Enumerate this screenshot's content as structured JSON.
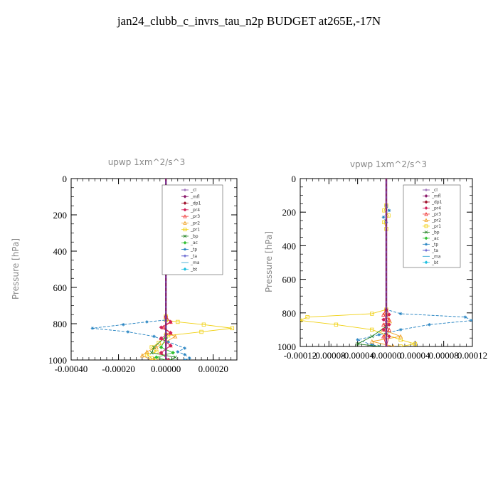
{
  "title": "jan24_clubb_c_invrs_tau_n2p  BUDGET at265E,-17N",
  "legend_entries": [
    {
      "name": "_cl",
      "color": "#7a3ea0",
      "marker": "plus"
    },
    {
      "name": "_mfl",
      "color": "#8b1a6a",
      "marker": "diamond"
    },
    {
      "name": "_dp1",
      "color": "#a0102a",
      "marker": "diamond"
    },
    {
      "name": "_pr4",
      "color": "#d0205a",
      "marker": "diamond"
    },
    {
      "name": "_pr3",
      "color": "#f03030",
      "marker": "triangle"
    },
    {
      "name": "_pr2",
      "color": "#f0a020",
      "marker": "triangle"
    },
    {
      "name": "_pr1",
      "color": "#f0d010",
      "marker": "square"
    },
    {
      "name": "_bp",
      "color": "#208020",
      "marker": "x"
    },
    {
      "name": "_ac",
      "color": "#30c030",
      "marker": "diamond"
    },
    {
      "name": "_tp",
      "color": "#2080c0",
      "marker": "star"
    },
    {
      "name": "_ta",
      "color": "#3030c0",
      "marker": "plus"
    },
    {
      "name": "_ma",
      "color": "#20a0d0",
      "marker": "none"
    },
    {
      "name": "_bt",
      "color": "#20c0e0",
      "marker": "diamond"
    }
  ],
  "chart_data": [
    {
      "type": "line",
      "title": "upwp   1xm^2/s^3",
      "xlabel": "",
      "ylabel": "Pressure [hPa]",
      "xlim": [
        -0.0004,
        0.0003
      ],
      "ylim": [
        1000,
        0
      ],
      "x_tick_labels": [
        "-0.00040",
        "-0.00020",
        "0.00000",
        "0.00020"
      ],
      "x_ticks": [
        -0.0004,
        -0.0002,
        0.0,
        0.0002
      ],
      "y_ticks": [
        0,
        200,
        400,
        600,
        800,
        1000
      ],
      "y_tick_labels": [
        "0",
        "200",
        "400",
        "600",
        "800",
        "1000"
      ],
      "legend": "top-right",
      "series": [
        {
          "name": "_pr1",
          "values": [
            [
              0,
              760
            ],
            [
              0,
              780
            ],
            [
              5e-05,
              790
            ],
            [
              0.00016,
              805
            ],
            [
              0.00028,
              825
            ],
            [
              0.00015,
              845
            ],
            [
              1e-05,
              865
            ],
            [
              -3e-05,
              905
            ],
            [
              -6e-05,
              930
            ],
            [
              -4e-05,
              955
            ],
            [
              -8e-05,
              970
            ],
            [
              -6e-05,
              990
            ],
            [
              -4e-05,
              1000
            ]
          ]
        },
        {
          "name": "_tp",
          "values": [
            [
              0,
              760
            ],
            [
              0,
              780
            ],
            [
              -8e-05,
              790
            ],
            [
              -0.00018,
              805
            ],
            [
              -0.00031,
              825
            ],
            [
              -0.00016,
              845
            ],
            [
              -5e-05,
              870
            ],
            [
              1e-05,
              900
            ],
            [
              8e-05,
              935
            ],
            [
              5e-05,
              955
            ],
            [
              8e-05,
              970
            ],
            [
              0.0001,
              990
            ],
            [
              8e-05,
              1000
            ]
          ]
        },
        {
          "name": "_pr2",
          "values": [
            [
              0,
              850
            ],
            [
              4e-05,
              870
            ],
            [
              -4e-05,
              930
            ],
            [
              -8e-05,
              955
            ],
            [
              -0.0001,
              975
            ],
            [
              -6e-05,
              1000
            ]
          ]
        },
        {
          "name": "_bp",
          "values": [
            [
              0,
              870
            ],
            [
              -5e-05,
              930
            ],
            [
              -6e-05,
              960
            ],
            [
              4e-05,
              985
            ],
            [
              2e-05,
              1000
            ]
          ]
        },
        {
          "name": "_pr3",
          "values": [
            [
              0,
              760
            ],
            [
              2e-05,
              790
            ],
            [
              -1e-05,
              820
            ],
            [
              2e-05,
              850
            ],
            [
              -2e-05,
              880
            ],
            [
              2e-05,
              920
            ],
            [
              -2e-05,
              960
            ],
            [
              1e-05,
              1000
            ]
          ]
        },
        {
          "name": "_pr4",
          "values": [
            [
              0,
              760
            ],
            [
              2e-05,
              790
            ],
            [
              -2e-05,
              820
            ],
            [
              2e-05,
              850
            ],
            [
              -2e-05,
              880
            ],
            [
              2e-05,
              920
            ],
            [
              -2e-05,
              960
            ],
            [
              1e-05,
              1000
            ]
          ]
        },
        {
          "name": "_ac",
          "values": [
            [
              0,
              880
            ],
            [
              -2e-05,
              930
            ],
            [
              3e-05,
              960
            ],
            [
              -4e-05,
              985
            ],
            [
              0,
              1000
            ]
          ]
        },
        {
          "name": "_dp1",
          "values": [
            [
              0,
              0
            ],
            [
              0,
              1000
            ]
          ]
        },
        {
          "name": "_mfl",
          "values": [
            [
              0,
              0
            ],
            [
              0,
              1000
            ]
          ]
        },
        {
          "name": "_cl",
          "values": [
            [
              0,
              0
            ],
            [
              0,
              1000
            ]
          ]
        }
      ]
    },
    {
      "type": "line",
      "title": "vpwp   1xm^2/s^3",
      "xlabel": "",
      "ylabel": "Pressure [hPa]",
      "xlim": [
        -0.00012,
        0.00012
      ],
      "ylim": [
        1000,
        0
      ],
      "x_tick_labels": [
        "-0.00012",
        "-0.00008",
        "-0.00004",
        "0.00000",
        "0.00004",
        "0.00008",
        "0.00012"
      ],
      "x_ticks": [
        -0.00012,
        -8e-05,
        -4e-05,
        0.0,
        4e-05,
        8e-05,
        0.00012
      ],
      "y_ticks": [
        0,
        200,
        400,
        600,
        800,
        1000
      ],
      "y_tick_labels": [
        "0",
        "200",
        "400",
        "600",
        "800",
        "1000"
      ],
      "legend": "top-right",
      "series": [
        {
          "name": "_pr1",
          "values": [
            [
              0,
              160
            ],
            [
              -3e-06,
              190
            ],
            [
              3e-06,
              220
            ],
            [
              -3e-06,
              260
            ],
            [
              0,
              300
            ],
            [
              0,
              780
            ],
            [
              -2e-05,
              805
            ],
            [
              -0.00011,
              825
            ],
            [
              -0.00012,
              845
            ],
            [
              -7e-05,
              870
            ],
            [
              -2e-05,
              900
            ],
            [
              0,
              930
            ],
            [
              2e-05,
              960
            ],
            [
              4e-05,
              985
            ],
            [
              2e-05,
              1000
            ]
          ]
        },
        {
          "name": "_tp",
          "values": [
            [
              0,
              160
            ],
            [
              4e-06,
              190
            ],
            [
              -4e-06,
              230
            ],
            [
              0,
              260
            ],
            [
              0,
              780
            ],
            [
              2e-05,
              805
            ],
            [
              0.00011,
              825
            ],
            [
              0.00012,
              845
            ],
            [
              6e-05,
              870
            ],
            [
              2e-05,
              900
            ],
            [
              -1e-05,
              930
            ],
            [
              -4e-05,
              960
            ],
            [
              -2e-05,
              990
            ],
            [
              -1e-05,
              1000
            ]
          ]
        },
        {
          "name": "_pr2",
          "values": [
            [
              0,
              800
            ],
            [
              5e-06,
              850
            ],
            [
              -5e-06,
              900
            ],
            [
              2e-05,
              940
            ],
            [
              -2e-05,
              970
            ],
            [
              1e-05,
              1000
            ]
          ]
        },
        {
          "name": "_bp",
          "values": [
            [
              0,
              880
            ],
            [
              -2e-05,
              940
            ],
            [
              -4e-05,
              985
            ],
            [
              -1e-05,
              1000
            ]
          ]
        },
        {
          "name": "_pr4",
          "values": [
            [
              0,
              780
            ],
            [
              4e-06,
              810
            ],
            [
              -4e-06,
              840
            ],
            [
              4e-06,
              870
            ],
            [
              -4e-06,
              900
            ],
            [
              4e-06,
              940
            ],
            [
              0,
              1000
            ]
          ]
        },
        {
          "name": "_pr3",
          "values": [
            [
              0,
              780
            ],
            [
              -4e-06,
              810
            ],
            [
              4e-06,
              840
            ],
            [
              -4e-06,
              870
            ],
            [
              4e-06,
              900
            ],
            [
              -4e-06,
              940
            ],
            [
              0,
              1000
            ]
          ]
        },
        {
          "name": "_dp1",
          "values": [
            [
              0,
              0
            ],
            [
              0,
              1000
            ]
          ]
        },
        {
          "name": "_mfl",
          "values": [
            [
              0,
              0
            ],
            [
              0,
              1000
            ]
          ]
        },
        {
          "name": "_cl",
          "values": [
            [
              0,
              0
            ],
            [
              0,
              1000
            ]
          ]
        }
      ]
    }
  ]
}
